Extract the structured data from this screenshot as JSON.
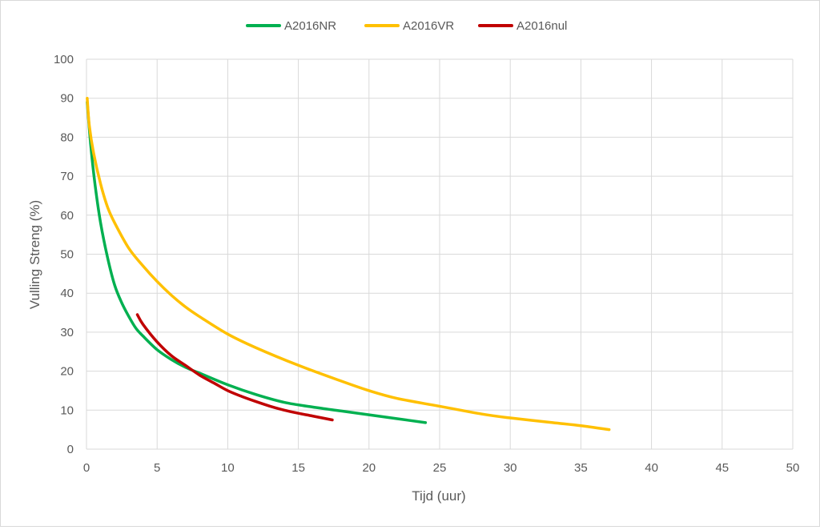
{
  "chart_data": {
    "type": "line",
    "title": "",
    "xlabel": "Tijd (uur)",
    "ylabel": "Vulling Streng (%)",
    "xlim": [
      0,
      50
    ],
    "ylim": [
      0,
      100
    ],
    "x_ticks": [
      "0",
      "5",
      "10",
      "15",
      "20",
      "25",
      "30",
      "35",
      "40",
      "45",
      "50"
    ],
    "y_ticks": [
      "0",
      "10",
      "20",
      "30",
      "40",
      "50",
      "60",
      "70",
      "80",
      "90",
      "100"
    ],
    "grid": true,
    "legend_position": "top",
    "series": [
      {
        "name": "A2016NR",
        "color": "#00b050",
        "points": [
          [
            0.05,
            89
          ],
          [
            0.3,
            78
          ],
          [
            0.6,
            68
          ],
          [
            1,
            58
          ],
          [
            1.5,
            49
          ],
          [
            2,
            42
          ],
          [
            2.5,
            37.5
          ],
          [
            3,
            34
          ],
          [
            3.5,
            31
          ],
          [
            4,
            29
          ],
          [
            5,
            25.5
          ],
          [
            6,
            23
          ],
          [
            7,
            21
          ],
          [
            8,
            19.5
          ],
          [
            10,
            16.5
          ],
          [
            12,
            14
          ],
          [
            14,
            12
          ],
          [
            16,
            10.8
          ],
          [
            18,
            9.8
          ],
          [
            20,
            8.8
          ],
          [
            22,
            7.8
          ],
          [
            24,
            6.8
          ]
        ]
      },
      {
        "name": "A2016VR",
        "color": "#ffc000",
        "points": [
          [
            0.05,
            90
          ],
          [
            0.2,
            83
          ],
          [
            0.5,
            76
          ],
          [
            1,
            68
          ],
          [
            1.5,
            62
          ],
          [
            2,
            58
          ],
          [
            3,
            51.5
          ],
          [
            4,
            47
          ],
          [
            5,
            43
          ],
          [
            6,
            39.5
          ],
          [
            7,
            36.5
          ],
          [
            8,
            34
          ],
          [
            10,
            29.5
          ],
          [
            12,
            26
          ],
          [
            15,
            21.5
          ],
          [
            18,
            17.5
          ],
          [
            20,
            15
          ],
          [
            22,
            13
          ],
          [
            25,
            11
          ],
          [
            28,
            9
          ],
          [
            30,
            8
          ],
          [
            33,
            6.8
          ],
          [
            35,
            6
          ],
          [
            37,
            5
          ]
        ]
      },
      {
        "name": "A2016nul",
        "color": "#c00000",
        "points": [
          [
            3.6,
            34.5
          ],
          [
            4,
            32
          ],
          [
            5,
            27.5
          ],
          [
            6,
            24
          ],
          [
            7,
            21.5
          ],
          [
            8,
            19
          ],
          [
            9,
            17
          ],
          [
            10,
            15
          ],
          [
            11,
            13.5
          ],
          [
            12,
            12.2
          ],
          [
            13,
            11
          ],
          [
            14,
            10
          ],
          [
            15,
            9.2
          ],
          [
            16,
            8.5
          ],
          [
            17.4,
            7.5
          ]
        ]
      }
    ]
  }
}
